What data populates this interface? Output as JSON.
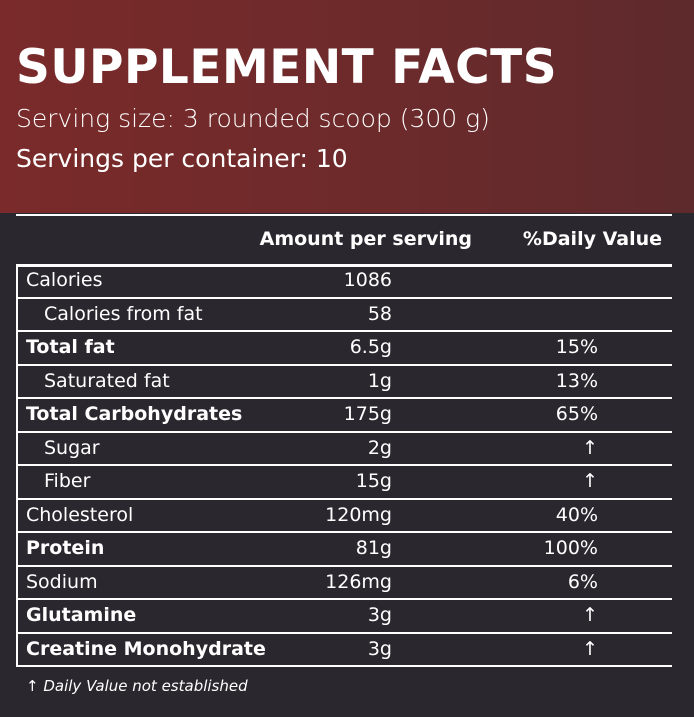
{
  "header": {
    "title": "SUPPLEMENT FACTS",
    "serving_size": "Serving size: 3 rounded scoop (300 g)",
    "servings_per_container": "Servings per container: 10"
  },
  "table": {
    "columns": [
      "Amount per serving",
      "%Daily Value"
    ],
    "rows": [
      {
        "label": "Calories",
        "amount": "1086",
        "bold": false,
        "indent": false
      },
      {
        "label": "Calories from fat",
        "amount": "58",
        "bold": false,
        "indent": true
      },
      {
        "label": "Total fat",
        "amount": "6.5g",
        "daily_value": "15%",
        "bold": true,
        "indent": false
      },
      {
        "label": "Saturated fat",
        "amount": "1g",
        "daily_value": "13%",
        "bold": false,
        "indent": true
      },
      {
        "label": "Total Carbohydrates",
        "amount": "175g",
        "daily_value": "65%",
        "bold": true,
        "indent": false
      },
      {
        "label": "Sugar",
        "amount": "2g",
        "daily_value": "↑",
        "bold": false,
        "indent": true
      },
      {
        "label": "Fiber",
        "amount": "15g",
        "daily_value": "↑",
        "bold": false,
        "indent": true
      },
      {
        "label": "Cholesterol",
        "amount": "120mg",
        "daily_value": "40%",
        "bold": false,
        "indent": false
      },
      {
        "label": "Protein",
        "amount": "81g",
        "daily_value": "100%",
        "bold": true,
        "indent": false
      },
      {
        "label": "Sodium",
        "amount": "126mg",
        "daily_value": "6%",
        "bold": false,
        "indent": false
      },
      {
        "label": "Glutamine",
        "amount": "3g",
        "daily_value": "↑",
        "bold": true,
        "indent": false
      },
      {
        "label": "Creatine Monohydrate",
        "amount": "3g",
        "daily_value": "↑",
        "bold": true,
        "indent": false
      }
    ]
  },
  "footnote": {
    "symbol": "↑",
    "text": "Daily Value not established"
  }
}
